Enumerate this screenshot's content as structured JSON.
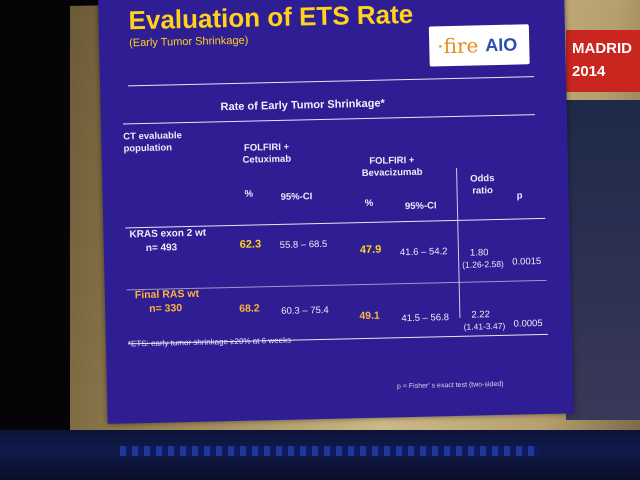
{
  "slide": {
    "title": "Evaluation of ETS Rate",
    "subtitle": "(Early Tumor Shrinkage)",
    "logo": {
      "fire": "·fire",
      "aio": "AIO"
    },
    "table_title": "Rate of Early Tumor Shrinkage*",
    "headers": {
      "population": "CT evaluable population",
      "arm1": "FOLFIRI + Cetuximab",
      "arm2": "FOLFIRI + Bevacizumab",
      "pct": "%",
      "ci": "95%-CI",
      "odds": "Odds ratio",
      "p": "p"
    },
    "rows": [
      {
        "population": "KRAS exon 2 wt",
        "n": "n= 493",
        "arm1_pct": "62.3",
        "arm1_ci": "55.8 – 68.5",
        "arm2_pct": "47.9",
        "arm2_ci": "41.6 – 54.2",
        "odds": "1.80",
        "odds_ci": "(1.26-2.58)",
        "p": "0.0015"
      },
      {
        "population": "Final RAS wt",
        "n": "n= 330",
        "arm1_pct": "68.2",
        "arm1_ci": "60.3 – 75.4",
        "arm2_pct": "49.1",
        "arm2_ci": "41.5 – 56.8",
        "odds": "2.22",
        "odds_ci": "(1.41-3.47)",
        "p": "0.0005"
      }
    ],
    "footnote": "*ETS: early tumor shrinkage ≥20% at 6 weeks",
    "fisher_note": "p = Fisher' s exact test (two-sided)"
  },
  "side_banner": {
    "city": "MADRID",
    "year": "2014"
  },
  "colors": {
    "slide_bg": "#2f1e93",
    "title": "#ffd21c",
    "banner": "#c8261f"
  }
}
